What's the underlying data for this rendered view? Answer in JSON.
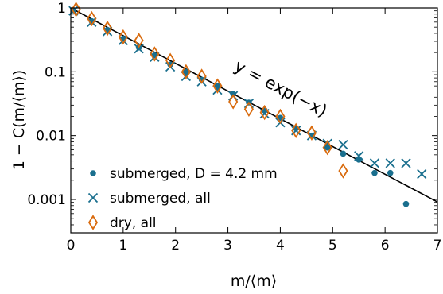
{
  "chart_data": {
    "type": "scatter",
    "title": "",
    "xlabel": "m/⟨m⟩",
    "ylabel": "1 − C(m/⟨m⟩)",
    "xlim": [
      0,
      7
    ],
    "ylim": [
      0.0003,
      1
    ],
    "y_scale": "log",
    "grid": false,
    "legend_position": "bottom-left",
    "x_ticks": [
      "0",
      "1",
      "2",
      "3",
      "4",
      "5",
      "6",
      "7"
    ],
    "x_tick_values": [
      0,
      1,
      2,
      3,
      4,
      5,
      6,
      7
    ],
    "y_ticks": [
      "1",
      "0.1",
      "0.01",
      "0.001"
    ],
    "y_tick_values": [
      1,
      0.1,
      0.01,
      0.001
    ],
    "annotation": "y = exp(−x)",
    "reference_line": {
      "label": "y = exp(−x)",
      "x": [
        0,
        7
      ],
      "y": [
        1,
        0.000912
      ],
      "color": "#000000"
    },
    "series": [
      {
        "name": "submerged,  D = 4.2 mm",
        "marker": "circle",
        "color": "#1a6f8e",
        "x": [
          0.05,
          0.4,
          0.7,
          1.0,
          1.3,
          1.6,
          1.9,
          2.2,
          2.5,
          2.8,
          3.1,
          3.4,
          3.7,
          4.0,
          4.3,
          4.6,
          4.9,
          5.2,
          5.5,
          5.8,
          6.1,
          6.4
        ],
        "y": [
          0.92,
          0.62,
          0.45,
          0.33,
          0.24,
          0.18,
          0.13,
          0.1,
          0.075,
          0.06,
          0.045,
          0.033,
          0.025,
          0.019,
          0.013,
          0.01,
          0.0065,
          0.0052,
          0.0042,
          0.0026,
          0.0026,
          0.00085
        ]
      },
      {
        "name": "submerged,  all",
        "marker": "x",
        "color": "#1a6f8e",
        "x": [
          0.05,
          0.4,
          0.7,
          1.0,
          1.3,
          1.6,
          1.9,
          2.2,
          2.5,
          2.8,
          3.1,
          3.4,
          3.7,
          4.0,
          4.3,
          4.6,
          4.9,
          5.2,
          5.5,
          5.8,
          6.1,
          6.4,
          6.7
        ],
        "y": [
          0.9,
          0.6,
          0.43,
          0.31,
          0.23,
          0.17,
          0.12,
          0.085,
          0.07,
          0.052,
          0.042,
          0.032,
          0.022,
          0.016,
          0.012,
          0.01,
          0.0075,
          0.0072,
          0.0048,
          0.0037,
          0.0037,
          0.0037,
          0.0025
        ]
      },
      {
        "name": "dry,  all",
        "marker": "diamond",
        "color": "#d96b0e",
        "x": [
          0.1,
          0.4,
          0.7,
          1.0,
          1.3,
          1.6,
          1.9,
          2.2,
          2.5,
          2.8,
          3.1,
          3.4,
          3.7,
          4.0,
          4.3,
          4.6,
          4.9,
          5.2
        ],
        "y": [
          0.95,
          0.68,
          0.48,
          0.35,
          0.31,
          0.19,
          0.15,
          0.1,
          0.085,
          0.06,
          0.034,
          0.026,
          0.023,
          0.02,
          0.012,
          0.011,
          0.0065,
          0.0028
        ]
      }
    ]
  }
}
